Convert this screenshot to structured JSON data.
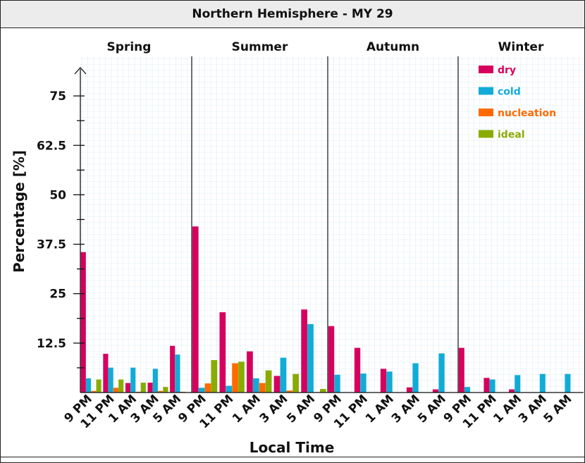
{
  "title": "Northern Hemisphere - MY 29",
  "chart_data": {
    "type": "bar",
    "xlabel": "Local Time",
    "ylabel": "Percentage [%]",
    "ylim": [
      0,
      85
    ],
    "yticks": [
      {
        "value": 12.5,
        "label": "12.5"
      },
      {
        "value": 25,
        "label": "25"
      },
      {
        "value": 37.5,
        "label": "37.5"
      },
      {
        "value": 50,
        "label": "50"
      },
      {
        "value": 62.5,
        "label": "62.5"
      },
      {
        "value": 75,
        "label": "75"
      }
    ],
    "yminor": [
      6.25,
      18.75,
      31.25,
      43.75,
      56.25,
      68.75
    ],
    "grid": true,
    "legend_position": "top-right",
    "series_meta": [
      {
        "name": "dry",
        "color": "#d6005e"
      },
      {
        "name": "cold",
        "color": "#10acd6"
      },
      {
        "name": "nucleation",
        "color": "#ff6a00"
      },
      {
        "name": "ideal",
        "color": "#8aab00"
      }
    ],
    "panels": [
      {
        "name": "Spring",
        "categories": [
          "9 PM",
          "11 PM",
          "1 AM",
          "3 AM",
          "5 AM"
        ],
        "series": [
          {
            "name": "dry",
            "values": [
              35.5,
              9.8,
              2.4,
              2.5,
              11.8
            ]
          },
          {
            "name": "cold",
            "values": [
              3.6,
              6.3,
              6.3,
              6.0,
              9.6
            ]
          },
          {
            "name": "nucleation",
            "values": [
              0.4,
              1.2,
              0.2,
              0.4,
              0.2
            ]
          },
          {
            "name": "ideal",
            "values": [
              3.3,
              3.3,
              2.5,
              1.4,
              0.0
            ]
          }
        ]
      },
      {
        "name": "Summer",
        "categories": [
          "9 PM",
          "11 PM",
          "1 AM",
          "3 AM",
          "5 AM"
        ],
        "series": [
          {
            "name": "dry",
            "values": [
              42.0,
              20.3,
              10.4,
              4.2,
              21.0
            ]
          },
          {
            "name": "cold",
            "values": [
              1.2,
              1.7,
              3.6,
              8.8,
              17.3
            ]
          },
          {
            "name": "nucleation",
            "values": [
              2.3,
              7.4,
              2.4,
              0.5,
              0.1
            ]
          },
          {
            "name": "ideal",
            "values": [
              8.2,
              7.8,
              5.6,
              4.7,
              0.9
            ]
          }
        ]
      },
      {
        "name": "Autumn",
        "categories": [
          "9 PM",
          "11 PM",
          "1 AM",
          "3 AM",
          "5 AM"
        ],
        "series": [
          {
            "name": "dry",
            "values": [
              16.8,
              11.3,
              6.0,
              1.3,
              0.8
            ]
          },
          {
            "name": "cold",
            "values": [
              4.5,
              4.8,
              5.3,
              7.4,
              9.9
            ]
          },
          {
            "name": "nucleation",
            "values": [
              0,
              0,
              0,
              0,
              0
            ]
          },
          {
            "name": "ideal",
            "values": [
              0,
              0,
              0,
              0,
              0
            ]
          }
        ]
      },
      {
        "name": "Winter",
        "categories": [
          "9 PM",
          "11 PM",
          "1 AM",
          "3 AM",
          "5 AM"
        ],
        "series": [
          {
            "name": "dry",
            "values": [
              11.3,
              3.7,
              0.8,
              0,
              0
            ]
          },
          {
            "name": "cold",
            "values": [
              1.4,
              3.3,
              4.4,
              4.7,
              4.7
            ]
          },
          {
            "name": "nucleation",
            "values": [
              0,
              0,
              0,
              0,
              0
            ]
          },
          {
            "name": "ideal",
            "values": [
              0,
              0,
              0,
              0,
              0
            ]
          }
        ]
      }
    ]
  }
}
